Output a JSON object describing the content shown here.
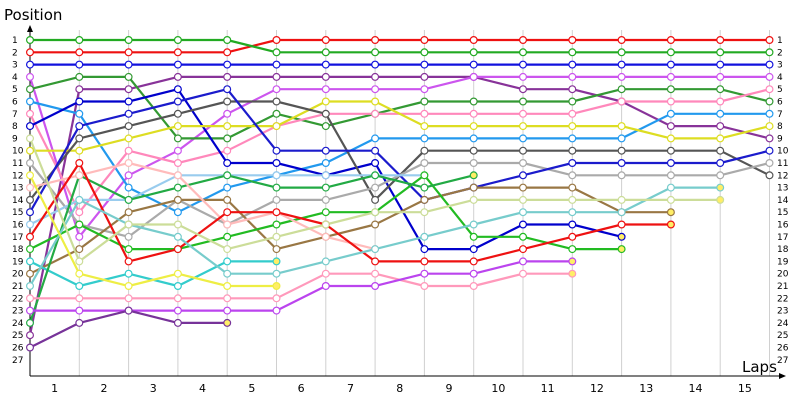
{
  "chart_data": {
    "type": "line",
    "title": "",
    "ylabel": "Position",
    "xlabel": "Laps",
    "x_ticks": [
      1,
      2,
      3,
      4,
      5,
      6,
      7,
      8,
      9,
      10,
      11,
      12,
      13,
      14,
      15
    ],
    "y_ticks": [
      1,
      2,
      3,
      4,
      5,
      6,
      7,
      8,
      9,
      10,
      11,
      12,
      13,
      14,
      15,
      16,
      17,
      18,
      19,
      20,
      21,
      22,
      23,
      24,
      25,
      26,
      27
    ],
    "right_y_ticks": [
      1,
      2,
      3,
      4,
      5,
      6,
      7,
      8,
      9,
      10,
      11,
      12,
      13,
      14,
      15,
      16,
      17,
      18,
      19,
      20,
      21,
      22,
      23,
      24,
      25,
      26,
      27
    ],
    "x_range": [
      0,
      15
    ],
    "y_range": [
      1,
      27
    ],
    "y_inverted": true,
    "grid": "vertical",
    "series": [
      {
        "color": "#ee1111",
        "values": [
          2,
          2,
          2,
          2,
          2,
          1,
          1,
          1,
          1,
          1,
          1,
          1,
          1,
          1,
          1,
          1
        ]
      },
      {
        "color": "#22aa22",
        "values": [
          1,
          1,
          1,
          1,
          1,
          2,
          2,
          2,
          2,
          2,
          2,
          2,
          2,
          2,
          2,
          2
        ]
      },
      {
        "color": "#1111dd",
        "values": [
          3,
          3,
          3,
          3,
          3,
          3,
          3,
          3,
          3,
          3,
          3,
          3,
          3,
          3,
          3,
          3
        ]
      },
      {
        "color": "#883399",
        "values": [
          25,
          5,
          5,
          4,
          4,
          4,
          4,
          4,
          4,
          4,
          5,
          5,
          6,
          8,
          8,
          9
        ]
      },
      {
        "color": "#cc55ee",
        "values": [
          4,
          17,
          12,
          10,
          7,
          5,
          5,
          5,
          5,
          4,
          4,
          4,
          4,
          4,
          4,
          4
        ]
      },
      {
        "color": "#339933",
        "values": [
          5,
          4,
          4,
          9,
          9,
          7,
          8,
          7,
          6,
          6,
          6,
          6,
          5,
          5,
          5,
          6
        ]
      },
      {
        "color": "#2299ee",
        "values": [
          6,
          7,
          13,
          15,
          13,
          12,
          11,
          9,
          9,
          9,
          9,
          9,
          9,
          7,
          7,
          7
        ]
      },
      {
        "color": "#ff88bb",
        "values": [
          7,
          15,
          10,
          11,
          10,
          8,
          7,
          7,
          7,
          7,
          7,
          7,
          6,
          6,
          6,
          5
        ]
      },
      {
        "color": "#0000cc",
        "values": [
          8,
          6,
          6,
          5,
          11,
          11,
          12,
          11,
          18,
          18,
          16,
          16,
          17
        ]
      },
      {
        "color": "#dddd22",
        "values": [
          10,
          10,
          9,
          8,
          8,
          8,
          6,
          6,
          8,
          8,
          8,
          8,
          8,
          9,
          9,
          8
        ]
      },
      {
        "color": "#555555",
        "values": [
          14,
          9,
          8,
          7,
          6,
          6,
          7,
          14,
          10,
          10,
          10,
          10,
          10,
          10,
          10,
          12
        ]
      },
      {
        "color": "#aaaaaa",
        "values": [
          11,
          16,
          17,
          14,
          16,
          14,
          14,
          13,
          11,
          11,
          11,
          12,
          12,
          12,
          12,
          11
        ]
      },
      {
        "color": "#1b1bcc",
        "values": [
          15,
          8,
          7,
          6,
          5,
          10,
          10,
          10,
          14,
          13,
          12,
          11,
          11,
          11,
          11,
          10
        ]
      },
      {
        "color": "#99ccee",
        "values": [
          16,
          14,
          14,
          12,
          12,
          12,
          12,
          12,
          12
        ]
      },
      {
        "color": "#997744",
        "values": [
          20,
          18,
          15,
          14,
          14,
          18,
          17,
          16,
          14,
          13,
          13,
          13,
          15,
          15
        ]
      },
      {
        "color": "#22bb22",
        "values": [
          18,
          16,
          18,
          18,
          17,
          16,
          15,
          15,
          12,
          17,
          17,
          18,
          18
        ]
      },
      {
        "color": "#33cccc",
        "values": [
          19,
          21,
          20,
          21,
          19,
          19
        ]
      },
      {
        "color": "#22aa44",
        "values": [
          24,
          12,
          14,
          13,
          12,
          13,
          13,
          12,
          13,
          12
        ]
      },
      {
        "color": "#ffbbbb",
        "values": [
          13,
          12,
          11,
          12,
          16,
          15,
          17,
          18
        ]
      },
      {
        "color": "#ee1111",
        "values": [
          17,
          11,
          19,
          18,
          15,
          15,
          16,
          19,
          19,
          19,
          18,
          17,
          16,
          16
        ]
      },
      {
        "color": "#77cccc",
        "values": [
          21,
          14,
          16,
          17,
          20,
          20,
          19,
          18,
          17,
          16,
          15,
          15,
          15,
          13,
          13
        ]
      },
      {
        "color": "#eeee44",
        "values": [
          12,
          20,
          21,
          20,
          21,
          21
        ]
      },
      {
        "color": "#ccdd99",
        "values": [
          9,
          19,
          16,
          16,
          18,
          17,
          16,
          15,
          15,
          14,
          14,
          14,
          14,
          14,
          14
        ]
      },
      {
        "color": "#ff99bb",
        "values": [
          22,
          22,
          22,
          22,
          22,
          22,
          20,
          20,
          21,
          21,
          20,
          20
        ]
      },
      {
        "color": "#bb44ee",
        "values": [
          23,
          23,
          23,
          23,
          23,
          23,
          21,
          21,
          20,
          20,
          19,
          19
        ]
      },
      {
        "color": "#773399",
        "values": [
          26,
          24,
          23,
          24,
          24
        ]
      }
    ]
  }
}
